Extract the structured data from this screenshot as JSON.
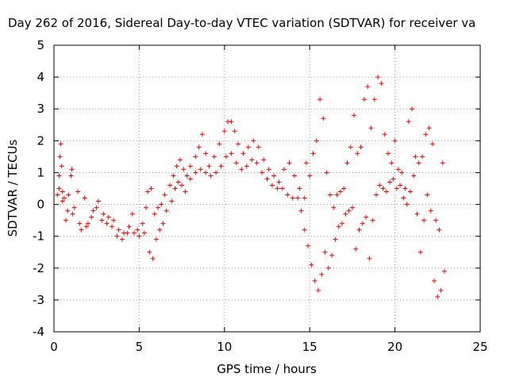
{
  "chart_data": {
    "type": "scatter",
    "title": "Day 262 of 2016, Sidereal Day-to-day VTEC variation (SDTVAR) for receiver va",
    "xlabel": "GPS time / hours",
    "ylabel": "SDTVAR / TECUs",
    "xlim": [
      0,
      25
    ],
    "ylim": [
      -4,
      5
    ],
    "xticks": [
      0,
      5,
      10,
      15,
      20,
      25
    ],
    "yticks": [
      -4,
      -3,
      -2,
      -1,
      0,
      1,
      2,
      3,
      4,
      5
    ],
    "grid": true,
    "legend": "none",
    "marker": "+",
    "series": [
      {
        "name": "SDTVAR",
        "color": "#ff0000",
        "points": [
          [
            0.2,
            0.3
          ],
          [
            0.3,
            0.9
          ],
          [
            0.35,
            1.5
          ],
          [
            0.4,
            1.9
          ],
          [
            0.45,
            1.2
          ],
          [
            0.5,
            0.4
          ],
          [
            0.6,
            0.2
          ],
          [
            0.7,
            -0.5
          ],
          [
            0.85,
            0.3
          ],
          [
            1.0,
            0.9
          ],
          [
            1.05,
            1.1
          ],
          [
            1.2,
            -0.1
          ],
          [
            1.4,
            0.4
          ],
          [
            1.6,
            -0.8
          ],
          [
            1.8,
            0.2
          ],
          [
            2.0,
            -0.6
          ],
          [
            2.3,
            -0.2
          ],
          [
            2.6,
            0.1
          ],
          [
            2.9,
            -0.3
          ],
          [
            3.2,
            -0.4
          ],
          [
            3.5,
            -0.5
          ],
          [
            3.8,
            -0.8
          ],
          [
            4.0,
            -1.1
          ],
          [
            4.3,
            -0.9
          ],
          [
            4.6,
            -0.3
          ],
          [
            4.9,
            -0.8
          ],
          [
            5.2,
            -0.6
          ],
          [
            5.4,
            -0.1
          ],
          [
            5.5,
            0.4
          ],
          [
            5.7,
            0.5
          ],
          [
            5.9,
            -0.3
          ],
          [
            6.1,
            -0.1
          ],
          [
            6.3,
            0.0
          ],
          [
            6.5,
            0.3
          ],
          [
            6.8,
            0.6
          ],
          [
            7.0,
            0.9
          ],
          [
            7.2,
            1.2
          ],
          [
            7.4,
            1.4
          ],
          [
            7.6,
            1.1
          ],
          [
            7.8,
            0.9
          ],
          [
            8.0,
            1.2
          ],
          [
            8.3,
            1.5
          ],
          [
            8.5,
            1.8
          ],
          [
            8.7,
            2.2
          ],
          [
            8.9,
            1.6
          ],
          [
            9.1,
            1.2
          ],
          [
            9.4,
            1.5
          ],
          [
            9.7,
            1.9
          ],
          [
            10.0,
            2.3
          ],
          [
            10.2,
            2.6
          ],
          [
            10.4,
            2.6
          ],
          [
            10.6,
            2.3
          ],
          [
            10.8,
            1.9
          ],
          [
            11.1,
            1.6
          ],
          [
            11.4,
            1.8
          ],
          [
            11.7,
            2.0
          ],
          [
            12.0,
            1.8
          ],
          [
            12.3,
            1.4
          ],
          [
            12.6,
            1.1
          ],
          [
            12.9,
            0.9
          ],
          [
            13.2,
            0.7
          ],
          [
            13.5,
            1.1
          ],
          [
            13.8,
            1.3
          ],
          [
            14.1,
            0.9
          ],
          [
            14.4,
            0.5
          ],
          [
            14.7,
            0.2
          ],
          [
            14.8,
            1.3
          ],
          [
            15.0,
            0.9
          ],
          [
            15.2,
            1.6
          ],
          [
            15.4,
            2.0
          ],
          [
            15.6,
            3.3
          ],
          [
            15.8,
            2.7
          ],
          [
            16.0,
            1.0
          ],
          [
            16.2,
            0.3
          ],
          [
            16.4,
            -0.1
          ],
          [
            16.6,
            0.3
          ],
          [
            16.8,
            0.4
          ],
          [
            17.0,
            0.5
          ],
          [
            17.2,
            1.3
          ],
          [
            17.4,
            1.8
          ],
          [
            17.6,
            2.8
          ],
          [
            17.8,
            1.6
          ],
          [
            18.0,
            1.8
          ],
          [
            18.2,
            3.3
          ],
          [
            18.4,
            3.7
          ],
          [
            18.6,
            2.4
          ],
          [
            18.8,
            3.3
          ],
          [
            19.0,
            4.0
          ],
          [
            19.2,
            3.8
          ],
          [
            19.4,
            2.2
          ],
          [
            19.6,
            1.6
          ],
          [
            19.8,
            1.3
          ],
          [
            20.0,
            2.0
          ],
          [
            20.2,
            1.1
          ],
          [
            20.4,
            1.0
          ],
          [
            20.6,
            0.5
          ],
          [
            20.8,
            2.6
          ],
          [
            21.0,
            3.0
          ],
          [
            21.2,
            1.5
          ],
          [
            21.4,
            1.3
          ],
          [
            21.6,
            1.5
          ],
          [
            21.8,
            2.2
          ],
          [
            22.0,
            2.4
          ],
          [
            22.2,
            1.9
          ],
          [
            22.4,
            -0.5
          ],
          [
            22.6,
            -0.8
          ],
          [
            22.8,
            1.3
          ],
          [
            0.3,
            0.5
          ],
          [
            0.5,
            0.1
          ],
          [
            0.8,
            -0.2
          ],
          [
            1.1,
            -0.3
          ],
          [
            1.5,
            -0.6
          ],
          [
            1.9,
            -0.7
          ],
          [
            2.2,
            -0.4
          ],
          [
            2.5,
            -0.1
          ],
          [
            2.8,
            -0.5
          ],
          [
            3.1,
            -0.6
          ],
          [
            3.4,
            -0.7
          ],
          [
            3.7,
            -1.0
          ],
          [
            4.1,
            -0.9
          ],
          [
            4.4,
            -0.7
          ],
          [
            4.7,
            -0.9
          ],
          [
            5.0,
            -1.0
          ],
          [
            5.3,
            -0.9
          ],
          [
            5.6,
            -1.5
          ],
          [
            5.8,
            -1.7
          ],
          [
            6.0,
            -1.1
          ],
          [
            6.2,
            -0.8
          ],
          [
            6.4,
            -0.6
          ],
          [
            6.6,
            -0.2
          ],
          [
            6.9,
            0.1
          ],
          [
            7.1,
            0.5
          ],
          [
            7.3,
            0.7
          ],
          [
            7.5,
            0.6
          ],
          [
            7.7,
            0.4
          ],
          [
            8.0,
            0.8
          ],
          [
            8.3,
            1.0
          ],
          [
            8.6,
            1.1
          ],
          [
            8.9,
            1.0
          ],
          [
            9.2,
            0.9
          ],
          [
            9.5,
            1.0
          ],
          [
            9.8,
            1.2
          ],
          [
            10.1,
            1.5
          ],
          [
            10.4,
            1.6
          ],
          [
            10.7,
            1.3
          ],
          [
            11.0,
            1.1
          ],
          [
            11.3,
            1.2
          ],
          [
            11.6,
            1.4
          ],
          [
            11.9,
            1.3
          ],
          [
            12.2,
            1.0
          ],
          [
            12.5,
            0.8
          ],
          [
            12.8,
            0.6
          ],
          [
            13.1,
            0.5
          ],
          [
            13.4,
            0.5
          ],
          [
            13.7,
            0.3
          ],
          [
            14.0,
            0.2
          ],
          [
            14.3,
            0.2
          ],
          [
            14.5,
            -0.2
          ],
          [
            14.7,
            -0.8
          ],
          [
            14.9,
            -1.3
          ],
          [
            15.1,
            -1.9
          ],
          [
            15.3,
            -2.4
          ],
          [
            15.5,
            -2.7
          ],
          [
            15.7,
            -2.2
          ],
          [
            15.9,
            -1.5
          ],
          [
            16.1,
            -2.0
          ],
          [
            16.3,
            -1.6
          ],
          [
            16.5,
            -1.1
          ],
          [
            16.7,
            -0.7
          ],
          [
            16.9,
            -0.6
          ],
          [
            17.1,
            -0.3
          ],
          [
            17.3,
            -0.2
          ],
          [
            17.5,
            -0.1
          ],
          [
            17.7,
            -1.4
          ],
          [
            17.9,
            -0.8
          ],
          [
            18.1,
            -0.6
          ],
          [
            18.3,
            -0.4
          ],
          [
            18.5,
            -1.7
          ],
          [
            18.7,
            -0.5
          ],
          [
            18.9,
            0.3
          ],
          [
            19.1,
            0.6
          ],
          [
            19.3,
            0.5
          ],
          [
            19.5,
            0.4
          ],
          [
            19.7,
            0.7
          ],
          [
            19.9,
            0.8
          ],
          [
            20.1,
            0.5
          ],
          [
            20.3,
            0.6
          ],
          [
            20.5,
            0.2
          ],
          [
            20.7,
            0.0
          ],
          [
            20.9,
            0.4
          ],
          [
            21.1,
            0.9
          ],
          [
            21.3,
            -0.3
          ],
          [
            21.5,
            -1.5
          ],
          [
            21.7,
            -0.5
          ],
          [
            21.9,
            0.3
          ],
          [
            22.1,
            -0.2
          ],
          [
            22.3,
            -2.4
          ],
          [
            22.5,
            -2.9
          ],
          [
            22.7,
            -2.7
          ],
          [
            22.9,
            -2.1
          ]
        ]
      }
    ]
  }
}
